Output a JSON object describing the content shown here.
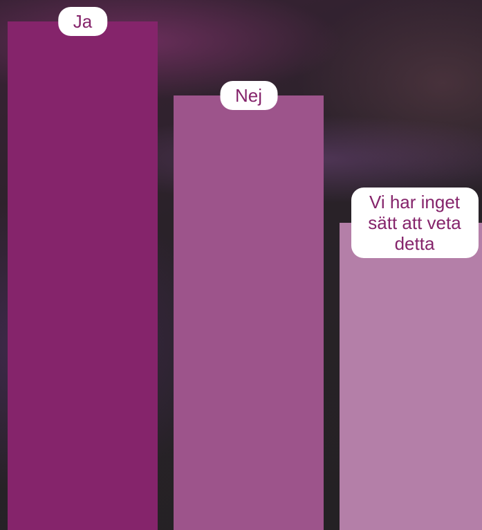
{
  "chart_data": {
    "type": "bar",
    "categories": [
      "Ja",
      "Nej",
      "Vi har inget sätt att veta detta"
    ],
    "values": [
      96,
      82,
      58
    ],
    "colors": [
      "#85246b",
      "#9d548b",
      "#b47fa8"
    ],
    "ylim": [
      0,
      100
    ]
  }
}
